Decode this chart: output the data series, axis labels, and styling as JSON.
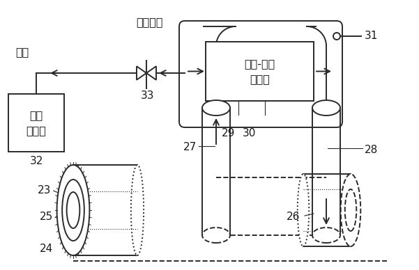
{
  "bg": "#ffffff",
  "lc": "#2a2a2a",
  "fc": "#1a1a1a",
  "fs": 11.5,
  "fn": 11,
  "lw": 1.4,
  "label_h2": "氢气",
  "label_valve": "氢气阀门",
  "label_recovery": "氢气\n回收站",
  "label_conv": "直流-交流\n变流器",
  "n23": "23",
  "n24": "24",
  "n25": "25",
  "n26": "26",
  "n27": "27",
  "n28": "28",
  "n29": "29",
  "n30": "30",
  "n31": "31",
  "n32": "32",
  "n33": "33"
}
